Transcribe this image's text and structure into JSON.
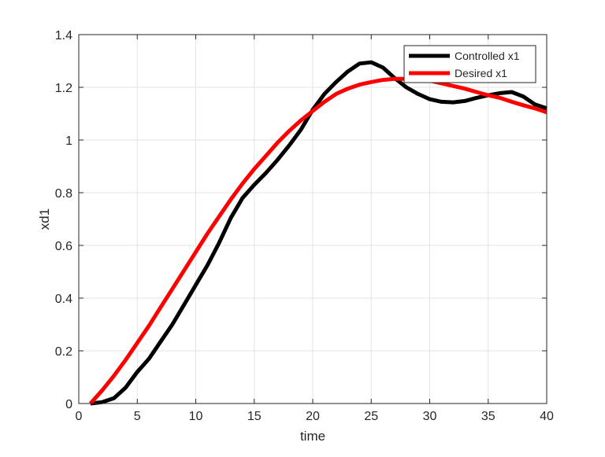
{
  "chart_data": {
    "type": "line",
    "title": "",
    "xlabel": "time",
    "ylabel": "xd1",
    "xlim": [
      0,
      40
    ],
    "ylim": [
      0,
      1.4
    ],
    "xticks": [
      "0",
      "5",
      "10",
      "15",
      "20",
      "25",
      "30",
      "35",
      "40"
    ],
    "yticks": [
      "0",
      "0.2",
      "0.4",
      "0.6",
      "0.8",
      "1",
      "1.2",
      "1.4"
    ],
    "grid": true,
    "legend_position": "top-right",
    "series": [
      {
        "name": "Controlled x1",
        "color": "#000000",
        "x": [
          1,
          2,
          3,
          4,
          5,
          6,
          7,
          8,
          9,
          10,
          11,
          12,
          13,
          14,
          15,
          16,
          17,
          18,
          19,
          20,
          21,
          22,
          23,
          24,
          25,
          26,
          27,
          28,
          29,
          30,
          31,
          32,
          33,
          34,
          35,
          36,
          37,
          38,
          39,
          40
        ],
        "y": [
          0.0,
          0.005,
          0.02,
          0.06,
          0.12,
          0.17,
          0.235,
          0.3,
          0.375,
          0.45,
          0.525,
          0.61,
          0.705,
          0.78,
          0.83,
          0.875,
          0.925,
          0.98,
          1.04,
          1.115,
          1.175,
          1.22,
          1.26,
          1.29,
          1.295,
          1.275,
          1.235,
          1.2,
          1.175,
          1.155,
          1.145,
          1.143,
          1.148,
          1.16,
          1.17,
          1.178,
          1.182,
          1.165,
          1.135,
          1.12
        ]
      },
      {
        "name": "Desired x1",
        "color": "#ff0000",
        "x": [
          1,
          2,
          3,
          4,
          5,
          6,
          7,
          8,
          9,
          10,
          11,
          12,
          13,
          14,
          15,
          16,
          17,
          18,
          19,
          20,
          21,
          22,
          23,
          24,
          25,
          26,
          27,
          28,
          29,
          30,
          31,
          32,
          33,
          34,
          35,
          36,
          37,
          38,
          39,
          40
        ],
        "y": [
          0.0,
          0.05,
          0.105,
          0.165,
          0.23,
          0.295,
          0.365,
          0.435,
          0.505,
          0.575,
          0.645,
          0.71,
          0.775,
          0.835,
          0.89,
          0.94,
          0.99,
          1.035,
          1.075,
          1.11,
          1.145,
          1.175,
          1.195,
          1.21,
          1.22,
          1.228,
          1.232,
          1.232,
          1.23,
          1.225,
          1.215,
          1.205,
          1.195,
          1.182,
          1.17,
          1.16,
          1.145,
          1.132,
          1.12,
          1.105
        ]
      }
    ]
  }
}
